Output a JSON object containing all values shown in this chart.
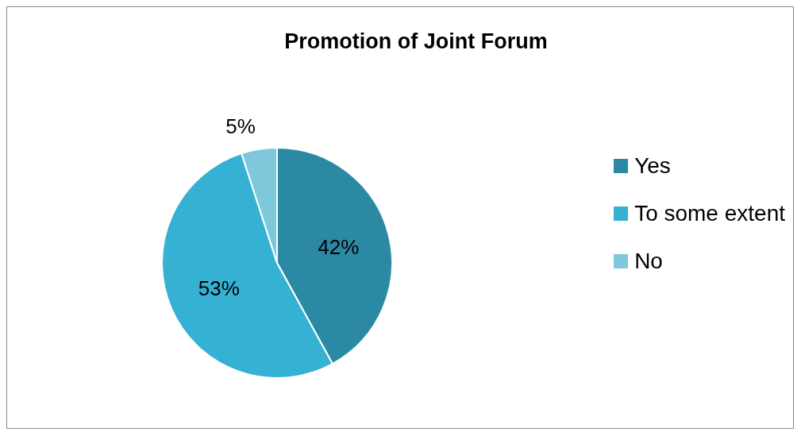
{
  "chart_data": {
    "type": "pie",
    "title": "Promotion of Joint Forum",
    "categories": [
      "Yes",
      "To some extent",
      "No"
    ],
    "values": [
      42,
      53,
      5
    ],
    "colors": [
      "#2b89a3",
      "#35b1d3",
      "#7ec8dc"
    ],
    "value_labels": [
      "42%",
      "53%",
      "5%"
    ],
    "legend": "right"
  }
}
